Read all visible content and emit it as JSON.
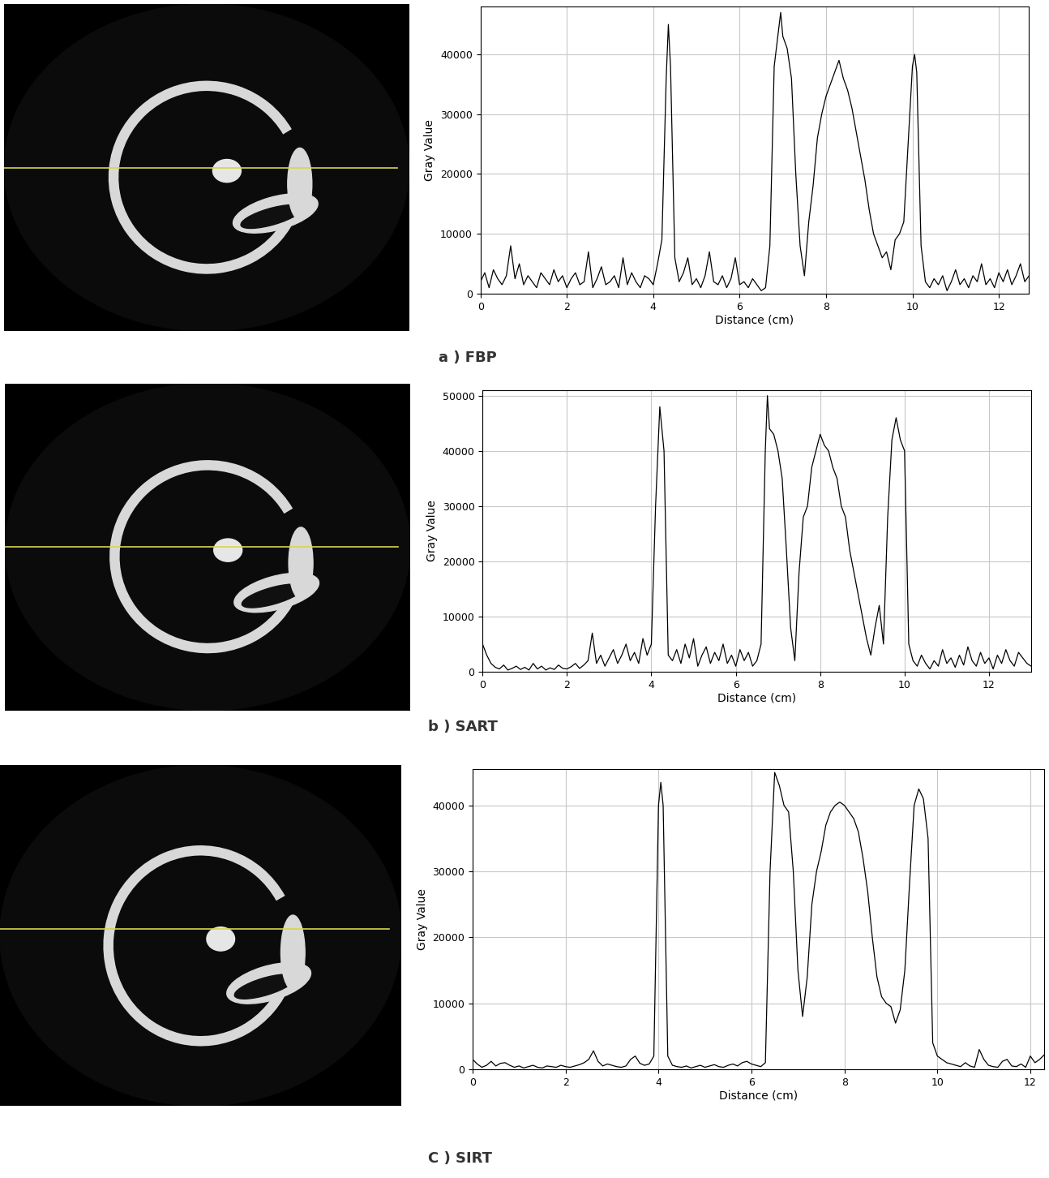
{
  "chart_data": [
    {
      "type": "line",
      "title": "a ) FBP",
      "x_label": "Distance (cm)",
      "y_label": "Gray Value",
      "color": "#000000",
      "grid": true,
      "xlim": [
        0,
        12.7
      ],
      "ylim": [
        0,
        48000
      ],
      "xticks": [
        0,
        2,
        4,
        6,
        8,
        10,
        12
      ],
      "yticks": [
        0,
        10000,
        20000,
        30000,
        40000
      ],
      "x": [
        0.0,
        0.1,
        0.2,
        0.3,
        0.4,
        0.5,
        0.6,
        0.7,
        0.8,
        0.9,
        1.0,
        1.1,
        1.2,
        1.3,
        1.4,
        1.5,
        1.6,
        1.7,
        1.8,
        1.9,
        2.0,
        2.1,
        2.2,
        2.3,
        2.4,
        2.5,
        2.6,
        2.7,
        2.8,
        2.9,
        3.0,
        3.1,
        3.2,
        3.3,
        3.4,
        3.5,
        3.6,
        3.7,
        3.8,
        3.9,
        4.0,
        4.1,
        4.2,
        4.3,
        4.35,
        4.4,
        4.5,
        4.6,
        4.7,
        4.8,
        4.9,
        5.0,
        5.1,
        5.2,
        5.3,
        5.4,
        5.5,
        5.6,
        5.7,
        5.8,
        5.9,
        6.0,
        6.1,
        6.2,
        6.3,
        6.4,
        6.5,
        6.6,
        6.7,
        6.8,
        6.9,
        6.95,
        7.0,
        7.1,
        7.2,
        7.3,
        7.4,
        7.5,
        7.6,
        7.7,
        7.8,
        7.9,
        8.0,
        8.1,
        8.2,
        8.3,
        8.4,
        8.5,
        8.6,
        8.7,
        8.8,
        8.9,
        9.0,
        9.1,
        9.2,
        9.3,
        9.4,
        9.5,
        9.6,
        9.7,
        9.8,
        9.9,
        10.0,
        10.05,
        10.1,
        10.2,
        10.3,
        10.4,
        10.5,
        10.6,
        10.7,
        10.8,
        10.9,
        11.0,
        11.1,
        11.2,
        11.3,
        11.4,
        11.5,
        11.6,
        11.7,
        11.8,
        11.9,
        12.0,
        12.1,
        12.2,
        12.3,
        12.4,
        12.5,
        12.6,
        12.7
      ],
      "values": [
        2000,
        3500,
        1000,
        4000,
        2500,
        1500,
        3000,
        8000,
        2500,
        5000,
        1500,
        3000,
        2000,
        1000,
        3500,
        2500,
        1500,
        4000,
        2000,
        3000,
        1000,
        2500,
        3500,
        1500,
        2000,
        7000,
        1000,
        2500,
        4500,
        1500,
        2000,
        3000,
        1000,
        6000,
        1500,
        3500,
        2000,
        1000,
        3000,
        2500,
        1500,
        5000,
        9000,
        36000,
        45000,
        38000,
        6000,
        2000,
        3500,
        6000,
        1500,
        2500,
        1000,
        3000,
        7000,
        2000,
        1500,
        3000,
        1000,
        2500,
        6000,
        1500,
        2000,
        1000,
        2500,
        1500,
        500,
        1000,
        8000,
        38000,
        44000,
        47000,
        43000,
        41000,
        36000,
        20000,
        8000,
        3000,
        12000,
        18000,
        26000,
        30000,
        33000,
        35000,
        37000,
        39000,
        36000,
        34000,
        31000,
        27000,
        23000,
        19000,
        14000,
        10000,
        8000,
        6000,
        7000,
        4000,
        9000,
        10000,
        12000,
        25000,
        38000,
        40000,
        37000,
        8000,
        2000,
        1000,
        2500,
        1500,
        3000,
        500,
        2000,
        4000,
        1500,
        2500,
        1000,
        3000,
        2000,
        5000,
        1500,
        2500,
        1000,
        3500,
        2000,
        4000,
        1500,
        3000,
        5000,
        2000,
        3000
      ]
    },
    {
      "type": "line",
      "title": "b ) SART",
      "x_label": "Distance (cm)",
      "y_label": "Gray Value",
      "color": "#000000",
      "grid": true,
      "xlim": [
        0,
        13
      ],
      "ylim": [
        0,
        51000
      ],
      "xticks": [
        0,
        2,
        4,
        6,
        8,
        10,
        12
      ],
      "yticks": [
        0,
        10000,
        20000,
        30000,
        40000,
        50000
      ],
      "x": [
        0.0,
        0.1,
        0.2,
        0.3,
        0.4,
        0.5,
        0.6,
        0.7,
        0.8,
        0.9,
        1.0,
        1.1,
        1.2,
        1.3,
        1.4,
        1.5,
        1.6,
        1.7,
        1.8,
        1.9,
        2.0,
        2.1,
        2.2,
        2.3,
        2.4,
        2.5,
        2.6,
        2.7,
        2.8,
        2.9,
        3.0,
        3.1,
        3.2,
        3.3,
        3.4,
        3.5,
        3.6,
        3.7,
        3.8,
        3.9,
        4.0,
        4.1,
        4.2,
        4.3,
        4.4,
        4.5,
        4.6,
        4.7,
        4.8,
        4.9,
        5.0,
        5.1,
        5.2,
        5.3,
        5.4,
        5.5,
        5.6,
        5.7,
        5.8,
        5.9,
        6.0,
        6.1,
        6.2,
        6.3,
        6.4,
        6.5,
        6.6,
        6.7,
        6.75,
        6.8,
        6.9,
        7.0,
        7.1,
        7.2,
        7.3,
        7.4,
        7.5,
        7.6,
        7.7,
        7.8,
        7.9,
        8.0,
        8.1,
        8.2,
        8.3,
        8.4,
        8.5,
        8.6,
        8.7,
        8.8,
        8.9,
        9.0,
        9.1,
        9.2,
        9.3,
        9.4,
        9.5,
        9.6,
        9.7,
        9.8,
        9.9,
        10.0,
        10.1,
        10.2,
        10.3,
        10.4,
        10.5,
        10.6,
        10.7,
        10.8,
        10.9,
        11.0,
        11.1,
        11.2,
        11.3,
        11.4,
        11.5,
        11.6,
        11.7,
        11.8,
        11.9,
        12.0,
        12.1,
        12.2,
        12.3,
        12.4,
        12.5,
        12.6,
        12.7,
        12.8,
        12.9,
        13.0
      ],
      "values": [
        5000,
        3000,
        1500,
        800,
        500,
        1200,
        300,
        600,
        1000,
        400,
        800,
        300,
        1500,
        500,
        1000,
        300,
        700,
        400,
        1200,
        600,
        500,
        900,
        1500,
        600,
        1200,
        2000,
        7000,
        1500,
        3000,
        1000,
        2500,
        4000,
        1500,
        3000,
        5000,
        2000,
        3500,
        1500,
        6000,
        3000,
        5000,
        30000,
        48000,
        40000,
        3000,
        2000,
        4000,
        1500,
        5000,
        2500,
        6000,
        1000,
        3000,
        4500,
        1500,
        3500,
        2000,
        5000,
        1500,
        3000,
        1000,
        4000,
        2000,
        3500,
        1000,
        2000,
        5000,
        40000,
        50000,
        44000,
        43000,
        40000,
        35000,
        22000,
        8000,
        2000,
        18000,
        28000,
        30000,
        37000,
        40000,
        43000,
        41000,
        40000,
        37000,
        35000,
        30000,
        28000,
        22000,
        18000,
        14000,
        10000,
        6000,
        3000,
        8000,
        12000,
        5000,
        28000,
        42000,
        46000,
        42000,
        40000,
        5000,
        2000,
        1000,
        3000,
        1500,
        500,
        2000,
        1000,
        4000,
        1500,
        2500,
        800,
        3000,
        1200,
        4500,
        2000,
        1000,
        3500,
        1500,
        2500,
        500,
        3000,
        1500,
        4000,
        2000,
        1000,
        3500,
        2500,
        1500,
        1000
      ]
    },
    {
      "type": "line",
      "title": "C ) SIRT",
      "x_label": "Distance (cm)",
      "y_label": "Gray Value",
      "color": "#000000",
      "grid": true,
      "xlim": [
        0,
        12.3
      ],
      "ylim": [
        0,
        45500
      ],
      "xticks": [
        0,
        2,
        4,
        6,
        8,
        10,
        12
      ],
      "yticks": [
        0,
        10000,
        20000,
        30000,
        40000
      ],
      "x": [
        0.0,
        0.1,
        0.2,
        0.3,
        0.4,
        0.5,
        0.6,
        0.7,
        0.8,
        0.9,
        1.0,
        1.1,
        1.2,
        1.3,
        1.4,
        1.5,
        1.6,
        1.7,
        1.8,
        1.9,
        2.0,
        2.1,
        2.2,
        2.3,
        2.4,
        2.5,
        2.6,
        2.7,
        2.8,
        2.9,
        3.0,
        3.1,
        3.2,
        3.3,
        3.4,
        3.5,
        3.6,
        3.7,
        3.8,
        3.9,
        4.0,
        4.05,
        4.1,
        4.2,
        4.3,
        4.4,
        4.5,
        4.6,
        4.7,
        4.8,
        4.9,
        5.0,
        5.1,
        5.2,
        5.3,
        5.4,
        5.5,
        5.6,
        5.7,
        5.8,
        5.9,
        6.0,
        6.1,
        6.2,
        6.3,
        6.4,
        6.5,
        6.6,
        6.7,
        6.8,
        6.9,
        7.0,
        7.1,
        7.2,
        7.3,
        7.4,
        7.5,
        7.6,
        7.7,
        7.8,
        7.9,
        8.0,
        8.1,
        8.2,
        8.3,
        8.4,
        8.5,
        8.6,
        8.7,
        8.8,
        8.9,
        9.0,
        9.1,
        9.2,
        9.3,
        9.4,
        9.5,
        9.6,
        9.7,
        9.8,
        9.9,
        10.0,
        10.1,
        10.2,
        10.3,
        10.4,
        10.5,
        10.6,
        10.7,
        10.8,
        10.9,
        11.0,
        11.1,
        11.2,
        11.3,
        11.4,
        11.5,
        11.6,
        11.7,
        11.8,
        11.9,
        12.0,
        12.1,
        12.2,
        12.3
      ],
      "values": [
        1500,
        800,
        300,
        600,
        1200,
        500,
        900,
        1000,
        600,
        300,
        500,
        200,
        400,
        600,
        300,
        200,
        500,
        400,
        300,
        600,
        400,
        300,
        500,
        700,
        1000,
        1500,
        2800,
        1200,
        500,
        800,
        600,
        400,
        300,
        500,
        1500,
        2000,
        900,
        600,
        800,
        2000,
        40000,
        43500,
        40000,
        2000,
        600,
        400,
        300,
        500,
        200,
        400,
        600,
        300,
        500,
        700,
        400,
        300,
        600,
        800,
        500,
        1000,
        1200,
        800,
        600,
        400,
        1000,
        30000,
        45000,
        43000,
        40000,
        39000,
        30000,
        15000,
        8000,
        14000,
        25000,
        30000,
        33000,
        37000,
        39000,
        40000,
        40500,
        40000,
        39000,
        38000,
        36000,
        32000,
        27000,
        20000,
        14000,
        11000,
        10000,
        9500,
        7000,
        9000,
        15000,
        28000,
        40000,
        42500,
        41000,
        35000,
        4000,
        2000,
        1500,
        1000,
        800,
        600,
        400,
        1000,
        500,
        300,
        3000,
        1500,
        600,
        400,
        300,
        1200,
        1500,
        500,
        400,
        800,
        300,
        2000,
        1000,
        1500,
        2200
      ]
    }
  ]
}
